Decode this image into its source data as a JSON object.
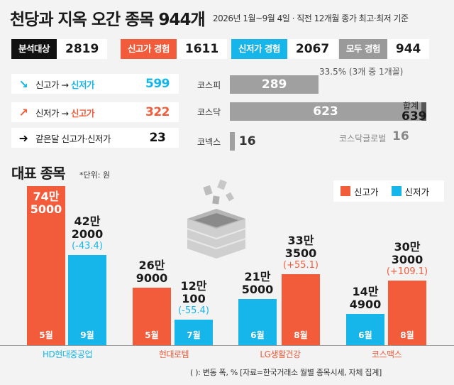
{
  "header": {
    "title": "천당과 지옥 오간 종목 944개",
    "subtitle": "2026년 1월~9월 4일 · 직전 12개월 종가 최고·최저 기준"
  },
  "summary": [
    {
      "label": "분석대상",
      "value": "2819",
      "color": "#111111"
    },
    {
      "label": "신고가 경험",
      "value": "1611",
      "color": "#f25c3b"
    },
    {
      "label": "신저가 경험",
      "value": "2067",
      "color": "#16b6ea"
    },
    {
      "label": "모두 경험",
      "value": "944",
      "color": "#9a9a9a"
    }
  ],
  "summary_note": "33.5% (3개 중 1개꼴)",
  "flows": [
    {
      "from": "신고가",
      "arrow": "→",
      "to": "신저가",
      "value": "599",
      "accent": "#16b6ea",
      "icon": "arrow-down-right-icon"
    },
    {
      "from": "신저가",
      "arrow": "→",
      "to": "신고가",
      "value": "322",
      "accent": "#f25c3b",
      "icon": "arrow-up-right-icon"
    },
    {
      "from": "같은달 신고가·신저가",
      "arrow": "",
      "to": "",
      "value": "23",
      "accent": "#111111",
      "icon": "arrow-right-icon"
    }
  ],
  "markets": {
    "items": [
      {
        "name": "코스피",
        "value": 289
      },
      {
        "name": "코스닥",
        "value": 623,
        "extra": 16
      },
      {
        "name": "코넥스",
        "value": 16
      }
    ],
    "total_label": "합계",
    "total_value": "639",
    "extra_label": "코스닥글로벌",
    "extra_value": "16"
  },
  "section": {
    "title": "대표 종목",
    "unit": "*단위: 원"
  },
  "legend": [
    {
      "label": "신고가",
      "color": "#f25c3b"
    },
    {
      "label": "신저가",
      "color": "#16b6ea"
    }
  ],
  "chart_data": {
    "type": "bar",
    "title": "대표 종목",
    "ylabel": "단위: 원",
    "categories": [
      "HD현대중공업",
      "현대로템",
      "LG생활건강",
      "코스맥스"
    ],
    "category_colors": [
      "#16b6ea",
      "#f25c3b",
      "#f25c3b",
      "#f25c3b"
    ],
    "bars": [
      {
        "company": "HD현대중공업",
        "type": "신고가",
        "month": "5월",
        "value": 745000,
        "label": "74만\n5000",
        "change": ""
      },
      {
        "company": "HD현대중공업",
        "type": "신저가",
        "month": "9월",
        "value": 422000,
        "label": "42만\n2000",
        "change": "(-43.4)"
      },
      {
        "company": "현대로템",
        "type": "신고가",
        "month": "5월",
        "value": 269000,
        "label": "26만\n9000",
        "change": ""
      },
      {
        "company": "현대로템",
        "type": "신저가",
        "month": "7월",
        "value": 120100,
        "label": "12만\n100",
        "change": "(-55.4)"
      },
      {
        "company": "LG생활건강",
        "type": "신저가",
        "month": "6월",
        "value": 215000,
        "label": "21만\n5000",
        "change": ""
      },
      {
        "company": "LG생활건강",
        "type": "신고가",
        "month": "8월",
        "value": 333500,
        "label": "33만\n3500",
        "change": "(+55.1)"
      },
      {
        "company": "코스맥스",
        "type": "신저가",
        "month": "6월",
        "value": 144900,
        "label": "14만\n4900",
        "change": ""
      },
      {
        "company": "코스맥스",
        "type": "신고가",
        "month": "8월",
        "value": 303000,
        "label": "30만\n3000",
        "change": "(+109.1)"
      }
    ],
    "ylim": [
      0,
      800000
    ]
  },
  "footer": "( ): 변동 폭, %  [자료=한국거래소 월별 종목시세, 자체 집계]"
}
